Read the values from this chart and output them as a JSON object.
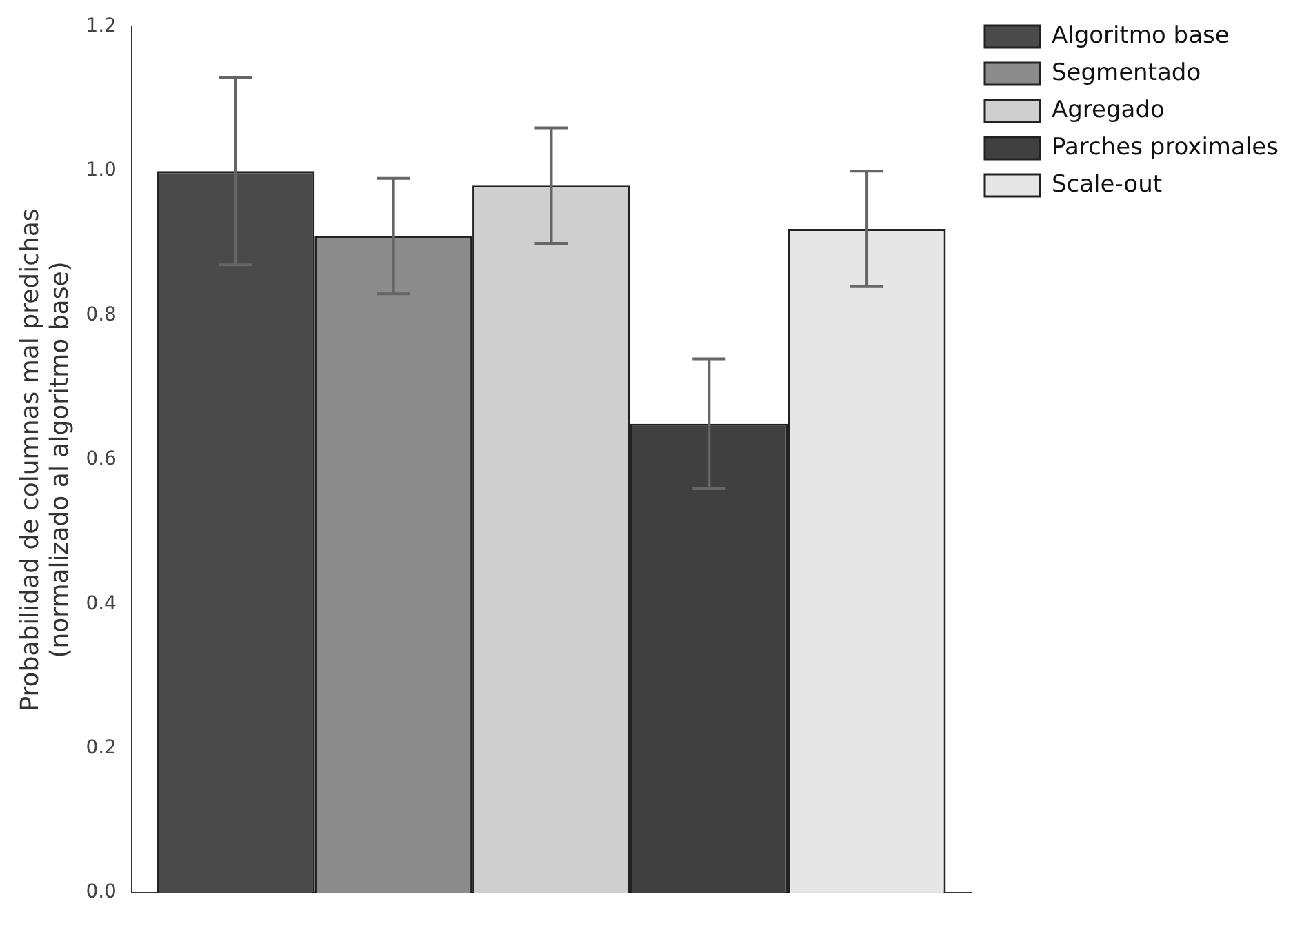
{
  "chart_data": {
    "type": "bar",
    "ylabel": "Probabilidad de columnas mal predichas\n(normalizado al algoritmo base)",
    "categories": [
      null
    ],
    "series": [
      {
        "name": "Algoritmo base",
        "color": "#4a4a4a",
        "values": [
          1.0
        ],
        "errors": [
          0.13
        ]
      },
      {
        "name": "Segmentado",
        "color": "#8c8c8c",
        "values": [
          0.91
        ],
        "errors": [
          0.08
        ]
      },
      {
        "name": "Agregado",
        "color": "#cfcfcf",
        "values": [
          0.98
        ],
        "errors": [
          0.08
        ]
      },
      {
        "name": "Parches proximales",
        "color": "#404040",
        "values": [
          0.65
        ],
        "errors": [
          0.09
        ]
      },
      {
        "name": "Scale-out",
        "color": "#e6e6e6",
        "values": [
          0.92
        ],
        "errors": [
          0.08
        ]
      }
    ],
    "ylim": [
      0,
      1.2
    ],
    "yticks": [
      {
        "value": 0,
        "label": "0.0"
      },
      {
        "value": 0.2,
        "label": "0.2"
      },
      {
        "value": 0.4,
        "label": "0.4"
      },
      {
        "value": 0.6,
        "label": "0.6"
      },
      {
        "value": 0.8,
        "label": "0.8"
      },
      {
        "value": 1.0,
        "label": "1.0"
      },
      {
        "value": 1.2,
        "label": "1.2"
      }
    ],
    "legend": "top right"
  }
}
